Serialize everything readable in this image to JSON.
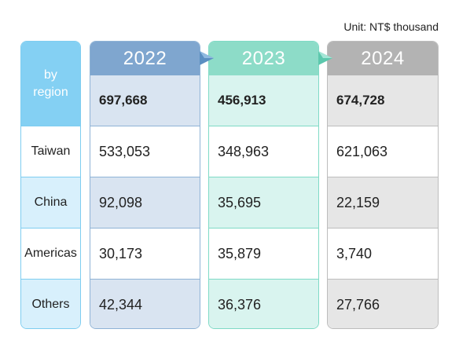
{
  "unit": "Unit: NT$ thousand",
  "region_header_line1": "by",
  "region_header_line2": "region",
  "regions": [
    "Taiwan",
    "China",
    "Americas",
    "Others"
  ],
  "years": [
    {
      "year": "2022",
      "total": "697,668",
      "values": [
        "533,053",
        "92,098",
        "30,173",
        "42,344"
      ]
    },
    {
      "year": "2023",
      "total": "456,913",
      "values": [
        "348,963",
        "35,695",
        "35,879",
        "36,376"
      ]
    },
    {
      "year": "2024",
      "total": "674,728",
      "values": [
        "621,063",
        "22,159",
        "3,740",
        "27,766"
      ]
    }
  ],
  "colors": {
    "region_header": "#84d0f3",
    "y2022_header": "#7fa6cf",
    "y2023_header": "#8ddcc8",
    "y2024_header": "#b3b3b3"
  }
}
